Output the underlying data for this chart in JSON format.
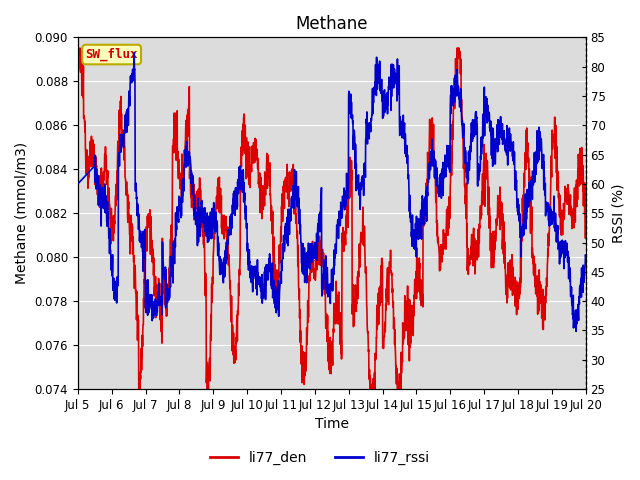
{
  "title": "Methane",
  "xlabel": "Time",
  "ylabel_left": "Methane (mmol/m3)",
  "ylabel_right": "RSSI (%)",
  "annotation": "SW_flux",
  "ylim_left": [
    0.074,
    0.09
  ],
  "ylim_right": [
    25,
    85
  ],
  "yticks_left": [
    0.074,
    0.076,
    0.078,
    0.08,
    0.082,
    0.084,
    0.086,
    0.088,
    0.09
  ],
  "yticks_right": [
    25,
    30,
    35,
    40,
    45,
    50,
    55,
    60,
    65,
    70,
    75,
    80,
    85
  ],
  "xtick_labels": [
    "Jul 5",
    "Jul 6",
    "Jul 7",
    "Jul 8",
    "Jul 9",
    "Jul 10",
    "Jul 11",
    "Jul 12",
    "Jul 13",
    "Jul 14",
    "Jul 15",
    "Jul 16",
    "Jul 17",
    "Jul 18",
    "Jul 19",
    "Jul 20"
  ],
  "color_den": "#dd0000",
  "color_rssi": "#0000cc",
  "background_color": "#dcdcdc",
  "fig_background": "#ffffff",
  "legend_labels": [
    "li77_den",
    "li77_rssi"
  ],
  "title_fontsize": 12,
  "axis_label_fontsize": 10,
  "tick_fontsize": 8.5,
  "linewidth": 1.2
}
